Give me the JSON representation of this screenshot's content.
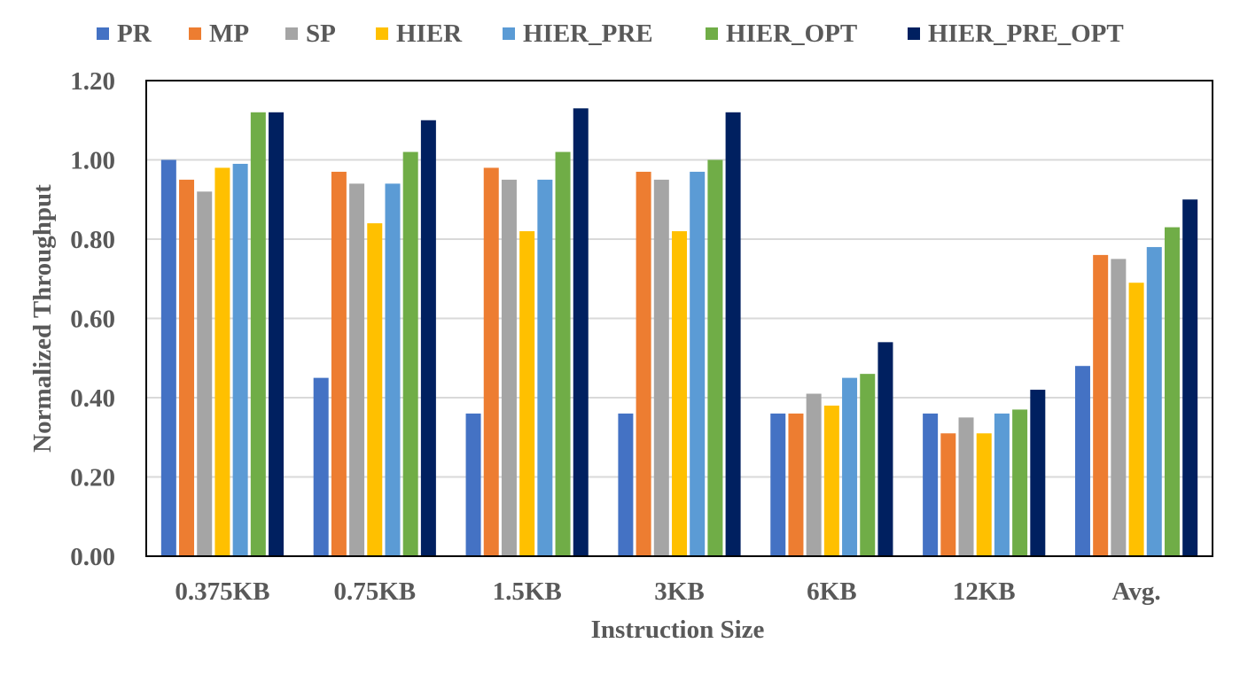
{
  "chart_data": {
    "type": "bar",
    "title": "",
    "xlabel": "Instruction Size",
    "ylabel": "Normalized Throughput",
    "ylim": [
      0,
      1.2
    ],
    "yticks": [
      "0.00",
      "0.20",
      "0.40",
      "0.60",
      "0.80",
      "1.00",
      "1.20"
    ],
    "grid": true,
    "legend_position": "top",
    "categories": [
      "0.375KB",
      "0.75KB",
      "1.5KB",
      "3KB",
      "6KB",
      "12KB",
      "Avg."
    ],
    "series": [
      {
        "name": "PR",
        "color": "#4472C4",
        "values": [
          1.0,
          0.45,
          0.36,
          0.36,
          0.36,
          0.36,
          0.48
        ]
      },
      {
        "name": "MP",
        "color": "#ED7D31",
        "values": [
          0.95,
          0.97,
          0.98,
          0.97,
          0.36,
          0.31,
          0.76
        ]
      },
      {
        "name": "SP",
        "color": "#A5A5A5",
        "values": [
          0.92,
          0.94,
          0.95,
          0.95,
          0.41,
          0.35,
          0.75
        ]
      },
      {
        "name": "HIER",
        "color": "#FFC000",
        "values": [
          0.98,
          0.84,
          0.82,
          0.82,
          0.38,
          0.31,
          0.69
        ]
      },
      {
        "name": "HIER_PRE",
        "color": "#5B9BD5",
        "values": [
          0.99,
          0.94,
          0.95,
          0.97,
          0.45,
          0.36,
          0.78
        ]
      },
      {
        "name": "HIER_OPT",
        "color": "#70AD47",
        "values": [
          1.12,
          1.02,
          1.02,
          1.0,
          0.46,
          0.37,
          0.83
        ]
      },
      {
        "name": "HIER_PRE_OPT",
        "color": "#002060",
        "values": [
          1.12,
          1.1,
          1.13,
          1.12,
          0.54,
          0.42,
          0.9
        ]
      }
    ]
  }
}
